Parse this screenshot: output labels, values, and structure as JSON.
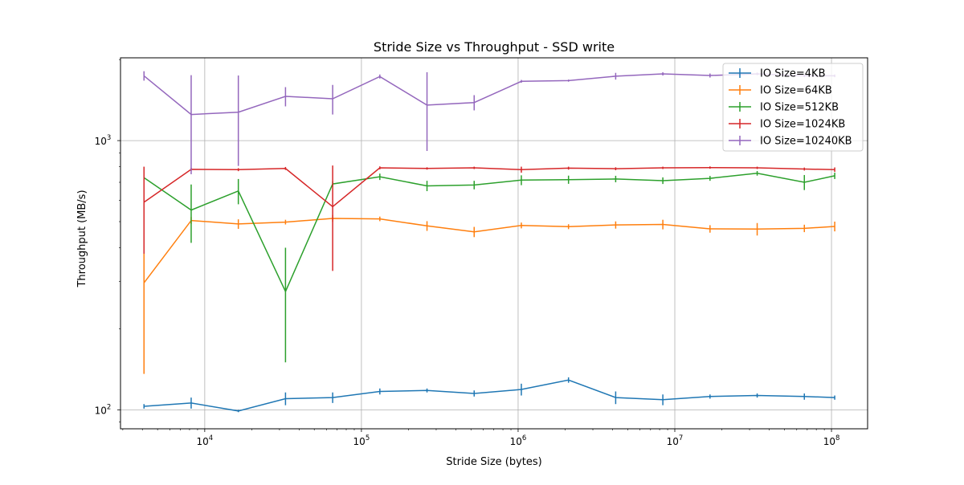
{
  "chart_data": {
    "type": "line",
    "title": "Stride Size vs Throughput - SSD write",
    "xlabel": "Stride Size (bytes)",
    "ylabel": "Throughput (MB/s)",
    "xscale": "log",
    "yscale": "log",
    "xlim": [
      2900,
      170000000
    ],
    "ylim": [
      85,
      2030
    ],
    "grid": true,
    "legend_position": "top-right",
    "x_ticks": [
      {
        "value": 10000,
        "label": "10^4",
        "base": "10",
        "exp": "4"
      },
      {
        "value": 100000,
        "label": "10^5",
        "base": "10",
        "exp": "5"
      },
      {
        "value": 1000000,
        "label": "10^6",
        "base": "10",
        "exp": "6"
      },
      {
        "value": 10000000,
        "label": "10^7",
        "base": "10",
        "exp": "7"
      },
      {
        "value": 100000000,
        "label": "10^8",
        "base": "10",
        "exp": "8"
      }
    ],
    "y_ticks": [
      {
        "value": 100,
        "label": "10^2",
        "base": "10",
        "exp": "2"
      },
      {
        "value": 1000,
        "label": "10^3",
        "base": "10",
        "exp": "3"
      }
    ],
    "x": [
      4096,
      8192,
      16384,
      32768,
      65536,
      131072,
      262144,
      524288,
      1048576,
      2097152,
      4194304,
      8388608,
      16777216,
      33554432,
      67108864,
      104857600
    ],
    "series": [
      {
        "name": "IO Size=4KB",
        "color": "#1f77b4",
        "values": [
          103,
          106,
          99,
          110,
          111,
          117,
          118,
          115,
          119,
          129,
          111,
          109,
          112,
          113,
          112,
          111
        ],
        "err": [
          2,
          5,
          1,
          6,
          5,
          3,
          2,
          3,
          6,
          3,
          6,
          5,
          2,
          2,
          3,
          2
        ]
      },
      {
        "name": "IO Size=64KB",
        "color": "#ff7f0e",
        "values": [
          296,
          505,
          490,
          498,
          514,
          512,
          482,
          458,
          484,
          479,
          486,
          488,
          470,
          469,
          472,
          480
        ],
        "err": [
          160,
          15,
          20,
          10,
          15,
          10,
          20,
          20,
          12,
          10,
          15,
          20,
          15,
          25,
          15,
          20
        ]
      },
      {
        "name": "IO Size=512KB",
        "color": "#2ca02c",
        "values": [
          728,
          552,
          650,
          275,
          690,
          734,
          679,
          684,
          713,
          716,
          720,
          710,
          724,
          756,
          700,
          740
        ],
        "err": [
          40,
          135,
          70,
          125,
          15,
          20,
          30,
          25,
          30,
          25,
          20,
          20,
          15,
          15,
          45,
          20
        ]
      },
      {
        "name": "IO Size=1024KB",
        "color": "#d62728",
        "values": [
          590,
          782,
          780,
          788,
          568,
          792,
          788,
          792,
          780,
          790,
          786,
          792,
          794,
          792,
          784,
          780
        ],
        "err": [
          210,
          10,
          10,
          10,
          240,
          10,
          8,
          8,
          20,
          10,
          10,
          8,
          8,
          8,
          10,
          15
        ]
      },
      {
        "name": "IO Size=10240KB",
        "color": "#9467bd",
        "values": [
          1740,
          1250,
          1275,
          1460,
          1430,
          1730,
          1355,
          1385,
          1660,
          1670,
          1735,
          1770,
          1745,
          1770,
          1740,
          1740
        ],
        "err": [
          70,
          500,
          470,
          120,
          180,
          30,
          440,
          90,
          20,
          15,
          50,
          25,
          30,
          20,
          20,
          20
        ]
      }
    ]
  }
}
